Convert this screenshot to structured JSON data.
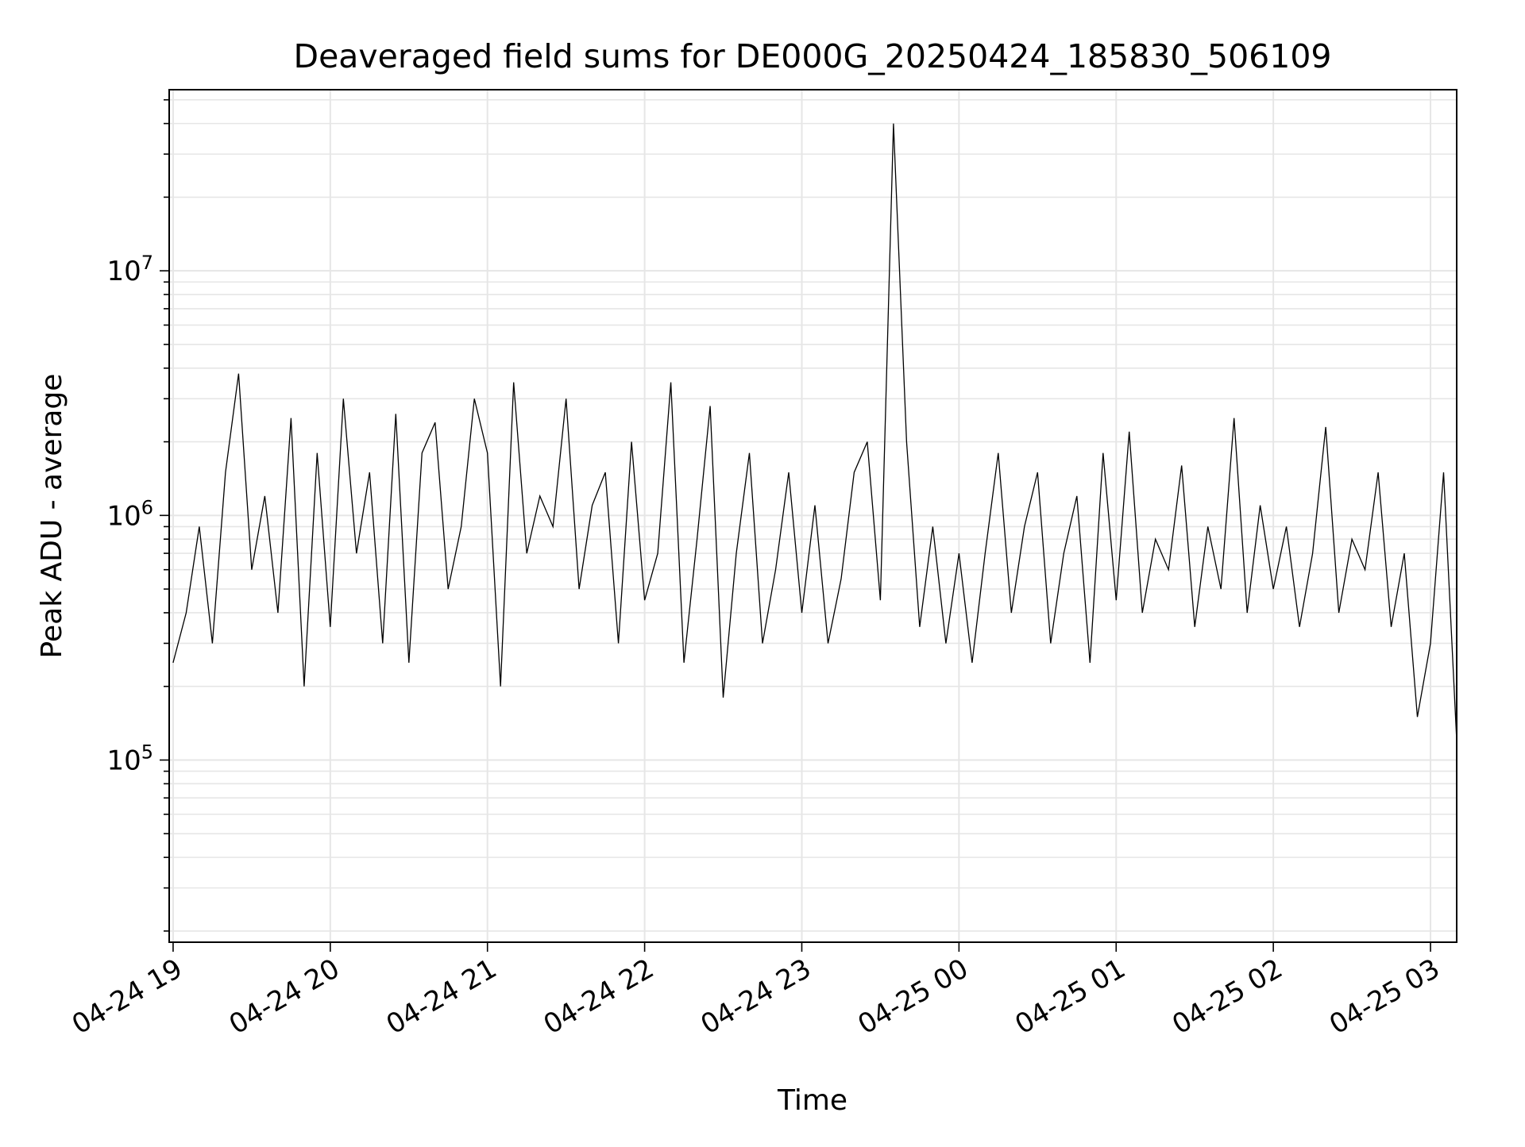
{
  "chart_data": {
    "type": "line",
    "title": "Deaveraged field sums for DE000G_20250424_185830_506109",
    "xlabel": "Time",
    "ylabel": "Peak ADU - average",
    "y_scale": "log",
    "ylim": [
      18000,
      55000000
    ],
    "xlim": [
      "2025-04-24 18:58:30",
      "2025-04-25 03:10:00"
    ],
    "x_ticks": [
      {
        "time": "2025-04-24 19:00",
        "label": "04-24 19"
      },
      {
        "time": "2025-04-24 20:00",
        "label": "04-24 20"
      },
      {
        "time": "2025-04-24 21:00",
        "label": "04-24 21"
      },
      {
        "time": "2025-04-24 22:00",
        "label": "04-24 22"
      },
      {
        "time": "2025-04-24 23:00",
        "label": "04-24 23"
      },
      {
        "time": "2025-04-25 00:00",
        "label": "04-25 00"
      },
      {
        "time": "2025-04-25 01:00",
        "label": "04-25 01"
      },
      {
        "time": "2025-04-25 02:00",
        "label": "04-25 02"
      },
      {
        "time": "2025-04-25 03:00",
        "label": "04-25 03"
      }
    ],
    "y_ticks": [
      {
        "value": 100000,
        "base": "10",
        "exp": "5"
      },
      {
        "value": 1000000,
        "base": "10",
        "exp": "6"
      },
      {
        "value": 10000000,
        "base": "10",
        "exp": "7"
      }
    ],
    "grid": true,
    "line_color": "#000000",
    "series": [
      {
        "x": [
          "2025-04-24 19:00",
          "2025-04-24 19:05",
          "2025-04-24 19:10",
          "2025-04-24 19:15",
          "2025-04-24 19:20",
          "2025-04-24 19:25",
          "2025-04-24 19:30",
          "2025-04-24 19:35",
          "2025-04-24 19:40",
          "2025-04-24 19:45",
          "2025-04-24 19:50",
          "2025-04-24 19:55",
          "2025-04-24 20:00",
          "2025-04-24 20:05",
          "2025-04-24 20:10",
          "2025-04-24 20:15",
          "2025-04-24 20:20",
          "2025-04-24 20:25",
          "2025-04-24 20:30",
          "2025-04-24 20:35",
          "2025-04-24 20:40",
          "2025-04-24 20:45",
          "2025-04-24 20:50",
          "2025-04-24 20:55",
          "2025-04-24 21:00",
          "2025-04-24 21:05",
          "2025-04-24 21:10",
          "2025-04-24 21:15",
          "2025-04-24 21:20",
          "2025-04-24 21:25",
          "2025-04-24 21:30",
          "2025-04-24 21:35",
          "2025-04-24 21:40",
          "2025-04-24 21:45",
          "2025-04-24 21:50",
          "2025-04-24 21:55",
          "2025-04-24 22:00",
          "2025-04-24 22:05",
          "2025-04-24 22:10",
          "2025-04-24 22:15",
          "2025-04-24 22:20",
          "2025-04-24 22:25",
          "2025-04-24 22:30",
          "2025-04-24 22:35",
          "2025-04-24 22:40",
          "2025-04-24 22:45",
          "2025-04-24 22:50",
          "2025-04-24 22:55",
          "2025-04-24 23:00",
          "2025-04-24 23:05",
          "2025-04-24 23:10",
          "2025-04-24 23:15",
          "2025-04-24 23:20",
          "2025-04-24 23:25",
          "2025-04-24 23:30",
          "2025-04-24 23:35",
          "2025-04-24 23:40",
          "2025-04-24 23:45",
          "2025-04-24 23:50",
          "2025-04-24 23:55",
          "2025-04-25 00:00",
          "2025-04-25 00:05",
          "2025-04-25 00:10",
          "2025-04-25 00:15",
          "2025-04-25 00:20",
          "2025-04-25 00:25",
          "2025-04-25 00:30",
          "2025-04-25 00:35",
          "2025-04-25 00:40",
          "2025-04-25 00:45",
          "2025-04-25 00:50",
          "2025-04-25 00:55",
          "2025-04-25 01:00",
          "2025-04-25 01:05",
          "2025-04-25 01:10",
          "2025-04-25 01:15",
          "2025-04-25 01:20",
          "2025-04-25 01:25",
          "2025-04-25 01:30",
          "2025-04-25 01:35",
          "2025-04-25 01:40",
          "2025-04-25 01:45",
          "2025-04-25 01:50",
          "2025-04-25 01:55",
          "2025-04-25 02:00",
          "2025-04-25 02:05",
          "2025-04-25 02:10",
          "2025-04-25 02:15",
          "2025-04-25 02:20",
          "2025-04-25 02:25",
          "2025-04-25 02:30",
          "2025-04-25 02:35",
          "2025-04-25 02:40",
          "2025-04-25 02:45",
          "2025-04-25 02:50",
          "2025-04-25 02:55",
          "2025-04-25 03:00",
          "2025-04-25 03:05",
          "2025-04-25 03:10"
        ],
        "y": [
          250000,
          400000,
          900000,
          300000,
          1500000,
          3800000,
          600000,
          1200000,
          400000,
          2500000,
          200000,
          1800000,
          350000,
          3000000,
          700000,
          1500000,
          300000,
          2600000,
          250000,
          1800000,
          2400000,
          500000,
          900000,
          3000000,
          1800000,
          200000,
          3500000,
          700000,
          1200000,
          900000,
          3000000,
          500000,
          1100000,
          1500000,
          300000,
          2000000,
          450000,
          700000,
          3500000,
          250000,
          800000,
          2800000,
          180000,
          700000,
          1800000,
          300000,
          600000,
          1500000,
          400000,
          1100000,
          300000,
          550000,
          1500000,
          2000000,
          450000,
          40000000,
          2000000,
          350000,
          900000,
          300000,
          700000,
          250000,
          700000,
          1800000,
          400000,
          900000,
          1500000,
          300000,
          700000,
          1200000,
          250000,
          1800000,
          450000,
          2200000,
          400000,
          800000,
          600000,
          1600000,
          350000,
          900000,
          500000,
          2500000,
          400000,
          1100000,
          500000,
          900000,
          350000,
          700000,
          2300000,
          400000,
          800000,
          600000,
          1500000,
          350000,
          700000,
          150000,
          300000,
          1500000,
          120000
        ]
      }
    ]
  }
}
